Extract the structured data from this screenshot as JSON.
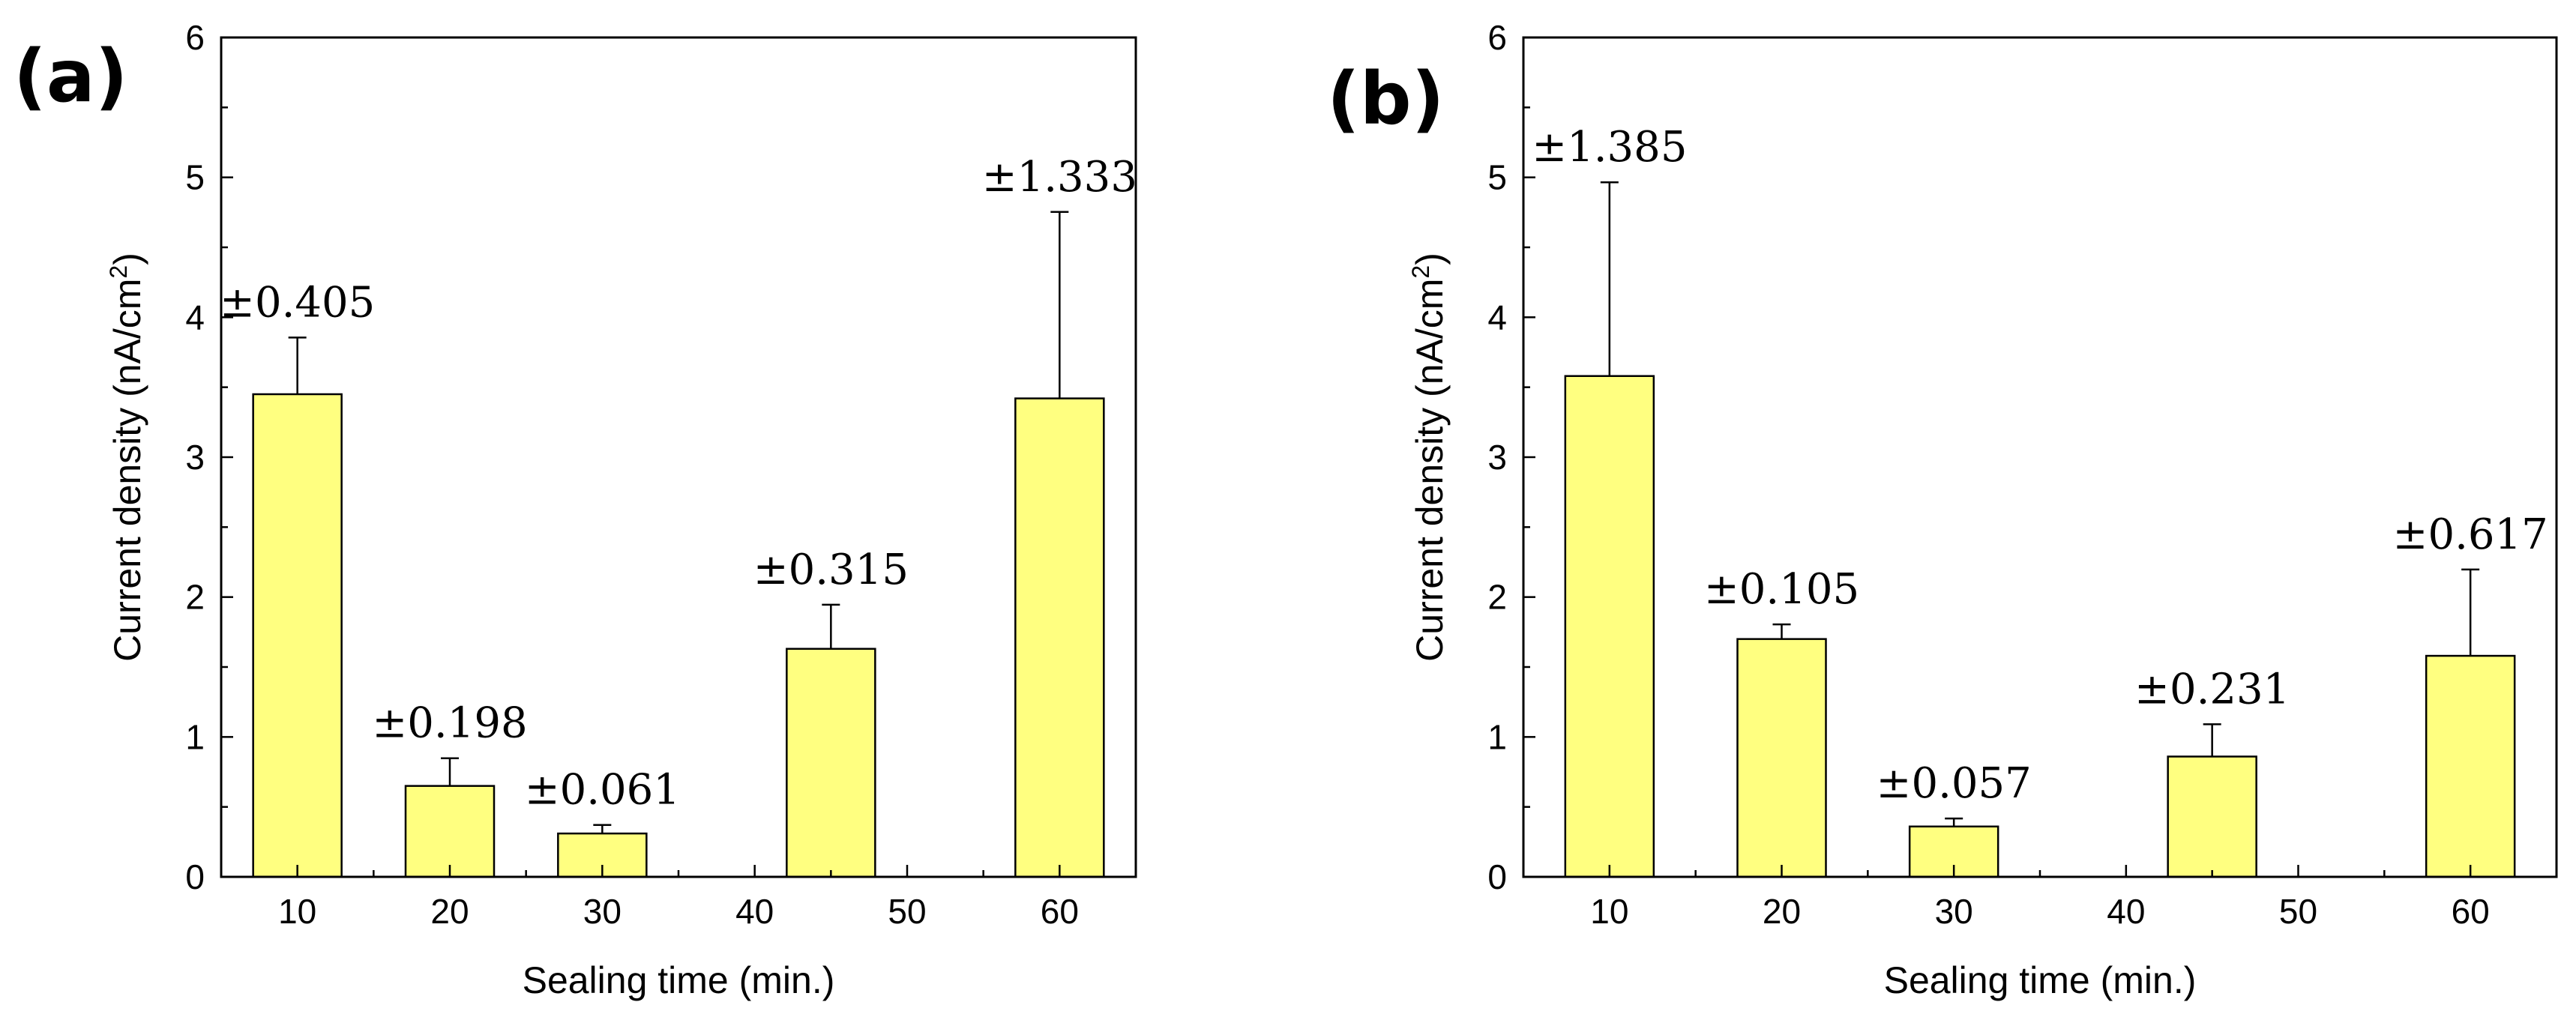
{
  "chart_data": [
    {
      "panel_label": "(a)",
      "type": "bar",
      "xlabel": "Sealing time (min.)",
      "ylabel": "Current density (nA/cm",
      "ylabel_sup": "2",
      "ylabel_close": ")",
      "xlim": [
        5,
        65
      ],
      "ylim": [
        0,
        6
      ],
      "xticks": [
        10,
        20,
        30,
        40,
        50,
        60
      ],
      "yticks": [
        0,
        1,
        2,
        3,
        4,
        5,
        6
      ],
      "bars": [
        {
          "x": 10,
          "value": 3.45,
          "error": 0.405,
          "error_label": "±0.405"
        },
        {
          "x": 20,
          "value": 0.65,
          "error": 0.198,
          "error_label": "±0.198"
        },
        {
          "x": 30,
          "value": 0.31,
          "error": 0.061,
          "error_label": "±0.061"
        },
        {
          "x": 45,
          "value": 1.63,
          "error": 0.315,
          "error_label": "±0.315"
        },
        {
          "x": 60,
          "value": 3.42,
          "error": 1.333,
          "error_label": "±1.333"
        }
      ],
      "bar_color": "#ffff80"
    },
    {
      "panel_label": "(b)",
      "type": "bar",
      "xlabel": "Sealing time (min.)",
      "ylabel": "Current density (nA/cm",
      "ylabel_sup": "2",
      "ylabel_close": ")",
      "xlim": [
        5,
        65
      ],
      "ylim": [
        0,
        6
      ],
      "xticks": [
        10,
        20,
        30,
        40,
        50,
        60
      ],
      "yticks": [
        0,
        1,
        2,
        3,
        4,
        5,
        6
      ],
      "bars": [
        {
          "x": 10,
          "value": 3.58,
          "error": 1.385,
          "error_label": "±1.385"
        },
        {
          "x": 20,
          "value": 1.7,
          "error": 0.105,
          "error_label": "±0.105"
        },
        {
          "x": 30,
          "value": 0.36,
          "error": 0.057,
          "error_label": "±0.057"
        },
        {
          "x": 45,
          "value": 0.86,
          "error": 0.231,
          "error_label": "±0.231"
        },
        {
          "x": 60,
          "value": 1.58,
          "error": 0.617,
          "error_label": "±0.617"
        }
      ],
      "bar_color": "#ffff80"
    }
  ]
}
